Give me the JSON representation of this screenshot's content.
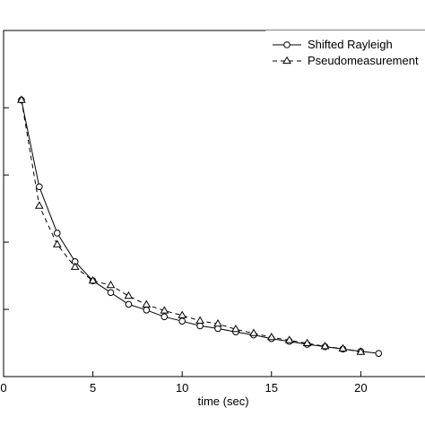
{
  "chart_data": {
    "type": "line",
    "xlabel": "time (sec)",
    "ylabel": "",
    "xlim": [
      0,
      24.4
    ],
    "ylim": [
      0,
      1.03
    ],
    "x_ticks": [
      0,
      5,
      10,
      15,
      20
    ],
    "x_tick_labels": [
      "0",
      "5",
      "10",
      "15",
      "20"
    ],
    "y_ticks": [
      0.2,
      0.4,
      0.6,
      0.8
    ],
    "grid": false,
    "legend_position": "top-right",
    "series": [
      {
        "name": "Shifted Rayleigh",
        "line_style": "solid",
        "marker": "circle",
        "x": [
          1,
          2,
          3,
          4,
          5,
          6,
          7,
          8,
          9,
          10,
          11,
          12,
          13,
          14,
          15,
          16,
          17,
          18,
          19,
          20,
          21
        ],
        "y": [
          0.823,
          0.565,
          0.427,
          0.342,
          0.285,
          0.25,
          0.215,
          0.198,
          0.178,
          0.165,
          0.151,
          0.143,
          0.133,
          0.124,
          0.113,
          0.105,
          0.096,
          0.089,
          0.082,
          0.075,
          0.069
        ]
      },
      {
        "name": "Pseudomeasurement",
        "line_style": "dashed",
        "marker": "triangle",
        "x": [
          1,
          2,
          3,
          4,
          5,
          6,
          7,
          8,
          9,
          10,
          11,
          12,
          13,
          14,
          15,
          16,
          17,
          18,
          19,
          20
        ],
        "y": [
          0.823,
          0.508,
          0.393,
          0.326,
          0.285,
          0.272,
          0.24,
          0.214,
          0.196,
          0.182,
          0.166,
          0.157,
          0.141,
          0.129,
          0.117,
          0.108,
          0.099,
          0.09,
          0.083,
          0.073
        ]
      }
    ]
  }
}
